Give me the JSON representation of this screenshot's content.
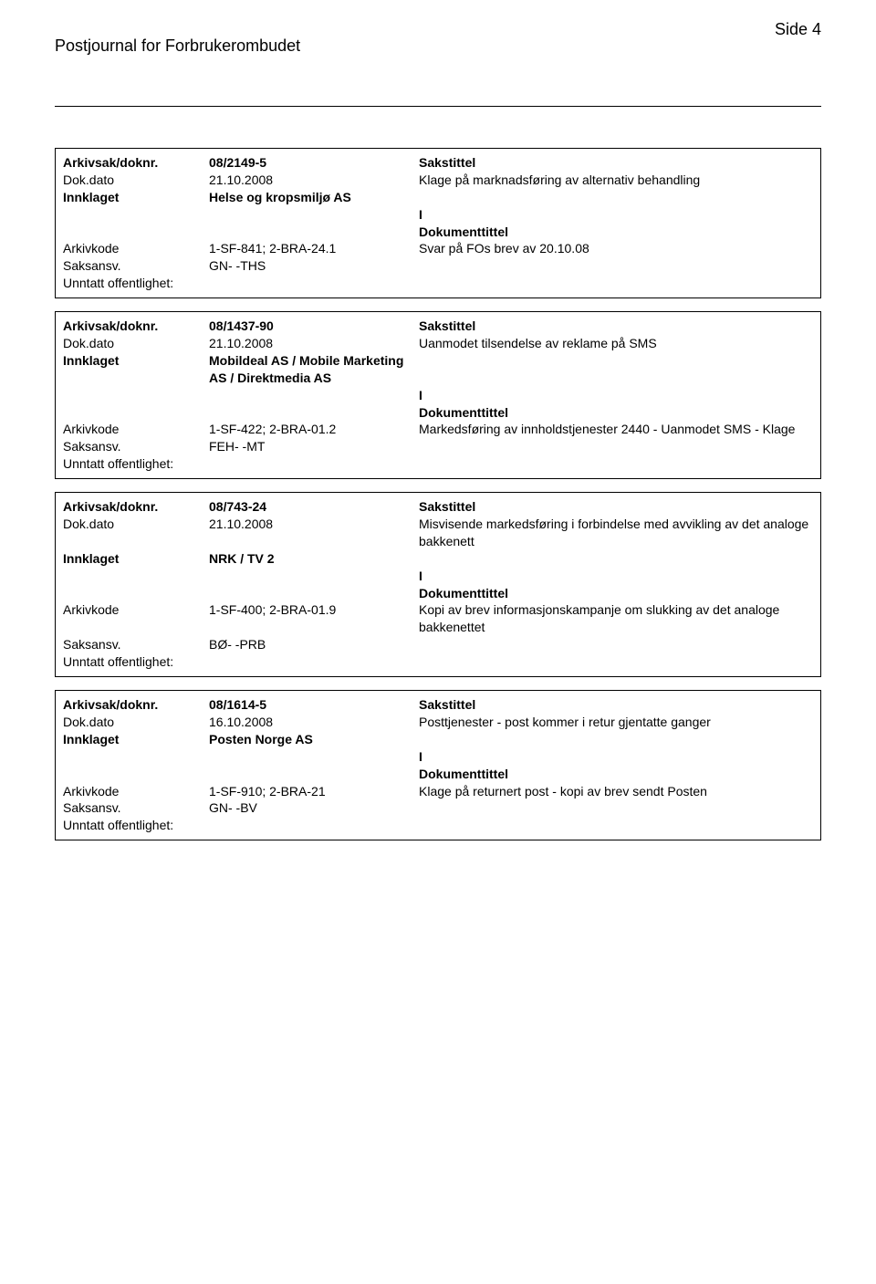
{
  "header": {
    "title": "Postjournal for Forbrukerombudet",
    "page": "Side 4"
  },
  "labels": {
    "arkivsak": "Arkivsak/doknr.",
    "dokdato": "Dok.dato",
    "innklaget": "Innklaget",
    "arkivkode": "Arkivkode",
    "saksansv": "Saksansv.",
    "unntatt": "Unntatt offentlighet:",
    "sakstittel": "Sakstittel",
    "dokumenttittel": "Dokumenttittel"
  },
  "records": [
    {
      "arkivsak": "08/2149-5",
      "dokdato": "21.10.2008",
      "sakstittel": "Klage på marknadsføring av alternativ behandling",
      "innklaget": "Helse og kropsmiljø AS",
      "doc_letter": "I",
      "arkivkode": "1-SF-841; 2-BRA-24.1",
      "dokumenttittel": "Svar på FOs brev av 20.10.08",
      "saksansv": "GN- -THS"
    },
    {
      "arkivsak": "08/1437-90",
      "dokdato": "21.10.2008",
      "sakstittel": "Uanmodet tilsendelse av reklame på SMS",
      "innklaget": "Mobildeal AS / Mobile Marketing AS / Direktmedia AS",
      "doc_letter": "I",
      "arkivkode": "1-SF-422; 2-BRA-01.2",
      "dokumenttittel": "Markedsføring av innholdstjenester 2440 - Uanmodet SMS - Klage",
      "saksansv": "FEH- -MT"
    },
    {
      "arkivsak": "08/743-24",
      "dokdato": "21.10.2008",
      "sakstittel": "Misvisende markedsføring i forbindelse med avvikling av det analoge bakkenett",
      "innklaget": "NRK / TV 2",
      "doc_letter": "I",
      "arkivkode": "1-SF-400; 2-BRA-01.9",
      "dokumenttittel": "Kopi av brev informasjonskampanje om slukking av det analoge bakkenettet",
      "saksansv": "BØ- -PRB"
    },
    {
      "arkivsak": "08/1614-5",
      "dokdato": "16.10.2008",
      "sakstittel": "Posttjenester - post kommer i retur gjentatte ganger",
      "innklaget": "Posten Norge AS",
      "doc_letter": "I",
      "arkivkode": "1-SF-910; 2-BRA-21",
      "dokumenttittel": "Klage på returnert post - kopi av brev sendt Posten",
      "saksansv": "GN- -BV"
    }
  ]
}
